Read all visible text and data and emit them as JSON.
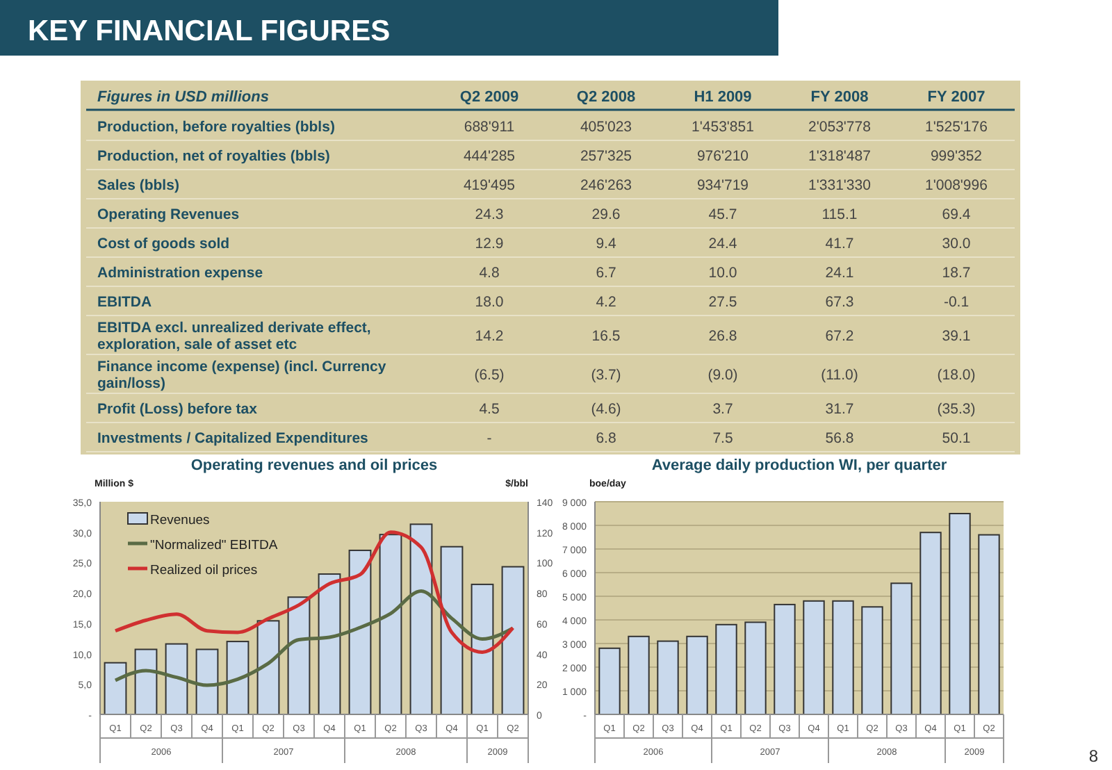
{
  "chart_data": [
    {
      "type": "other",
      "title": "KEY FINANCIAL FIGURES",
      "annotations": [
        "Figures in USD millions",
        "8"
      ],
      "categories": [
        "Q2 2009",
        "Q2 2008",
        "H1 2009",
        "FY 2008",
        "FY 2007"
      ],
      "y_categories": [
        "Production, before royalties (bbls)",
        "Production, net of royalties (bbls)",
        "Sales (bbls)",
        "Operating Revenues",
        "Cost of goods sold",
        "Administration expense",
        "EBITDA",
        "EBITDA excl. unrealized derivate effect, exploration, sale of asset etc",
        "Finance income (expense) (incl. Currency gain/loss)",
        "Profit (Loss) before tax",
        "Investments / Capitalized Expenditures"
      ],
      "cell_labels": [
        [
          "688'911",
          "405'023",
          "1'453'851",
          "2'053'778",
          "1'525'176"
        ],
        [
          "444'285",
          "257'325",
          "976'210",
          "1'318'487",
          "999'352"
        ],
        [
          "419'495",
          "246'263",
          "934'719",
          "1'331'330",
          "1'008'996"
        ],
        [
          "24.3",
          "29.6",
          "45.7",
          "115.1",
          "69.4"
        ],
        [
          "12.9",
          "9.4",
          "24.4",
          "41.7",
          "30.0"
        ],
        [
          "4.8",
          "6.7",
          "10.0",
          "24.1",
          "18.7"
        ],
        [
          "18.0",
          "4.2",
          "27.5",
          "67.3",
          "-0.1"
        ],
        [
          "14.2",
          "16.5",
          "26.8",
          "67.2",
          "39.1"
        ],
        [
          "(6.5)",
          "(3.7)",
          "(9.0)",
          "(11.0)",
          "(18.0)"
        ],
        [
          "4.5",
          "(4.6)",
          "3.7",
          "31.7",
          "(35.3)"
        ],
        [
          "-",
          "6.8",
          "7.5",
          "56.8",
          "50.1"
        ]
      ]
    },
    {
      "type": "bar",
      "title": "Operating revenues and oil prices",
      "ylabel": "Million $",
      "y2label": "$/bbl",
      "categories": [
        "Q1",
        "Q2",
        "Q3",
        "Q4",
        "Q1",
        "Q2",
        "Q3",
        "Q4",
        "Q1",
        "Q2",
        "Q3",
        "Q4",
        "Q1",
        "Q2"
      ],
      "annotations": [
        "2006",
        "2007",
        "2008",
        "2009"
      ],
      "series": [
        {
          "name": "Revenues",
          "type": "bar",
          "color": "#c9d9ec",
          "values": [
            8.5,
            10.7,
            11.6,
            10.7,
            12.0,
            15.4,
            19.3,
            23.1,
            27.0,
            29.6,
            31.3,
            27.6,
            21.4,
            24.3
          ]
        },
        {
          "name": "\"Normalized\" EBITDA",
          "type": "line",
          "color": "#5a6b45",
          "values": [
            5.6,
            7.2,
            6.1,
            4.8,
            5.8,
            8.4,
            12.3,
            12.7,
            14.3,
            16.6,
            20.3,
            15.8,
            12.4,
            14.2
          ]
        },
        {
          "name": "Realized oil prices",
          "type": "line",
          "axis": "y2",
          "color": "#d03030",
          "values": [
            55,
            62,
            66,
            55,
            54,
            63,
            72,
            86,
            92,
            120,
            110,
            54,
            41,
            57
          ]
        }
      ],
      "ylim": [
        0,
        35
      ],
      "yticks": [
        {
          "value": 0,
          "label": "-"
        },
        {
          "value": 5,
          "label": "5,0"
        },
        {
          "value": 10,
          "label": "10,0"
        },
        {
          "value": 15,
          "label": "15,0"
        },
        {
          "value": 20,
          "label": "20,0"
        },
        {
          "value": 25,
          "label": "25,0"
        },
        {
          "value": 30,
          "label": "30,0"
        },
        {
          "value": 35,
          "label": "35,0"
        }
      ],
      "y2lim": [
        0,
        140
      ],
      "y2ticks": [
        0,
        20,
        40,
        60,
        80,
        100,
        120,
        140
      ],
      "legend": "top left",
      "grid": false,
      "marker": "none"
    },
    {
      "type": "bar",
      "title": "Average daily production WI, per quarter",
      "ylabel": "boe/day",
      "categories": [
        "Q1",
        "Q2",
        "Q3",
        "Q4",
        "Q1",
        "Q2",
        "Q3",
        "Q4",
        "Q1",
        "Q2",
        "Q3",
        "Q4",
        "Q1",
        "Q2"
      ],
      "annotations": [
        "2006",
        "2007",
        "2008",
        "2009"
      ],
      "series": [
        {
          "color": "#c9d9ec",
          "values": [
            2800,
            3300,
            3100,
            3300,
            3800,
            3900,
            4650,
            4800,
            4800,
            4550,
            5550,
            7700,
            8500,
            7600
          ]
        }
      ],
      "ylim": [
        0,
        9000
      ],
      "yticks": [
        {
          "value": 0,
          "label": "-"
        },
        {
          "value": 1000,
          "label": "1 000"
        },
        {
          "value": 2000,
          "label": "2 000"
        },
        {
          "value": 3000,
          "label": "3 000"
        },
        {
          "value": 4000,
          "label": "4 000"
        },
        {
          "value": 5000,
          "label": "5 000"
        },
        {
          "value": 6000,
          "label": "6 000"
        },
        {
          "value": 7000,
          "label": "7 000"
        },
        {
          "value": 8000,
          "label": "8 000"
        },
        {
          "value": 9000,
          "label": "9 000"
        }
      ],
      "grid": "y",
      "legend": false
    }
  ]
}
